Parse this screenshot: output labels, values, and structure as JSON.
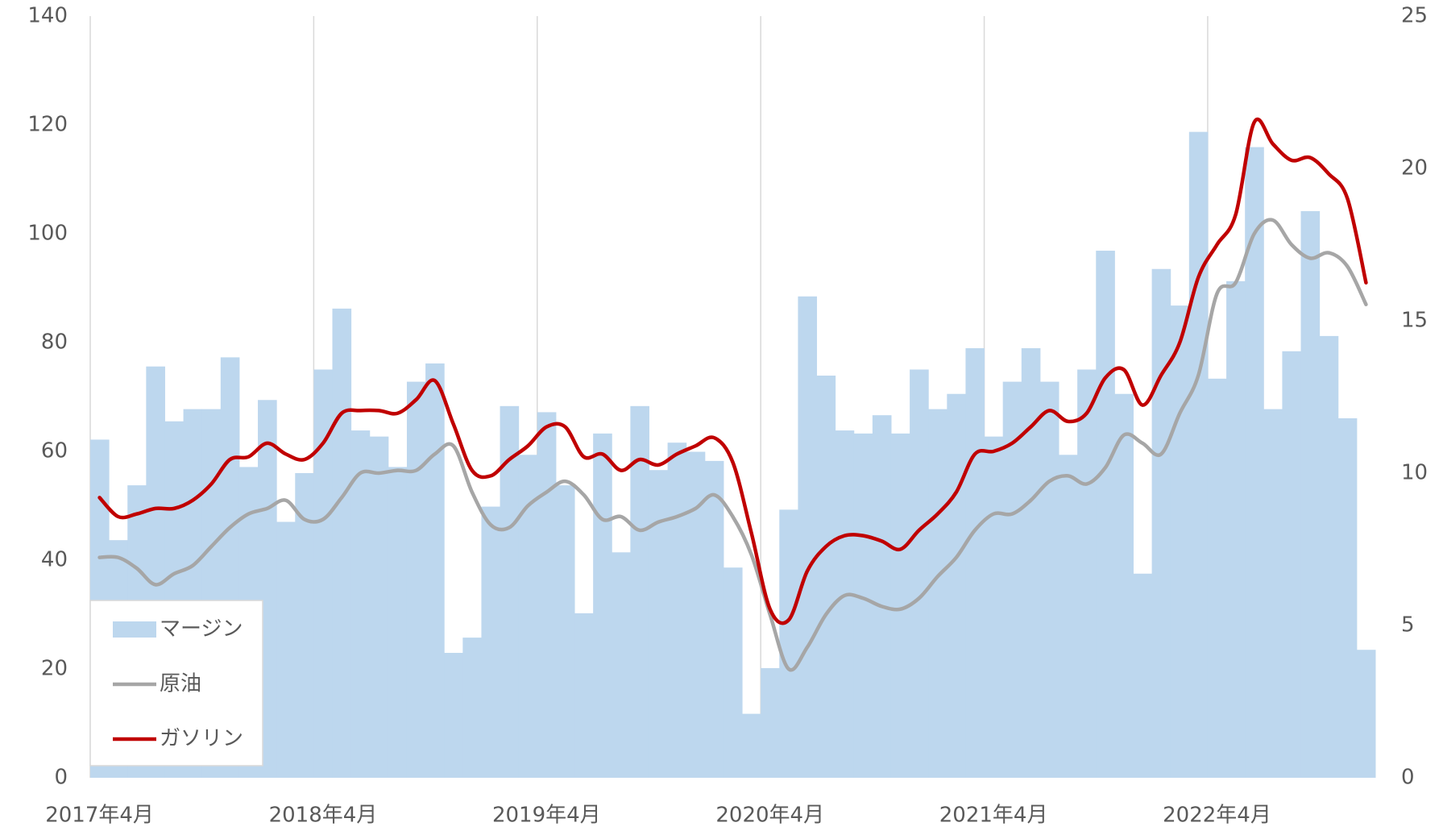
{
  "chart_data": {
    "type": "bar-line",
    "categories": [
      "2017年4月",
      null,
      null,
      null,
      null,
      null,
      null,
      null,
      null,
      null,
      null,
      null,
      "2018年4月",
      null,
      null,
      null,
      null,
      null,
      null,
      null,
      null,
      null,
      null,
      null,
      "2019年4月",
      null,
      null,
      null,
      null,
      null,
      null,
      null,
      null,
      null,
      null,
      null,
      "2020年4月",
      null,
      null,
      null,
      null,
      null,
      null,
      null,
      null,
      null,
      null,
      null,
      "2021年4月",
      null,
      null,
      null,
      null,
      null,
      null,
      null,
      null,
      null,
      null,
      null,
      "2022年4月",
      null,
      null,
      null,
      null,
      null,
      null,
      null,
      null
    ],
    "series": [
      {
        "name": "マージン",
        "type": "bar",
        "axis": "y2",
        "color": "#bdd7ee",
        "values": [
          11.1,
          7.8,
          9.6,
          13.5,
          11.7,
          12.1,
          12.1,
          13.8,
          10.2,
          12.4,
          8.4,
          10.0,
          13.4,
          15.4,
          11.4,
          11.2,
          10.2,
          13.0,
          13.6,
          4.1,
          4.6,
          8.9,
          12.2,
          10.6,
          12.0,
          9.6,
          5.4,
          11.3,
          7.4,
          12.2,
          10.1,
          11.0,
          10.7,
          10.4,
          6.9,
          2.1,
          3.6,
          8.8,
          15.8,
          13.2,
          11.4,
          11.3,
          11.9,
          11.3,
          13.4,
          12.1,
          12.6,
          14.1,
          11.2,
          13.0,
          14.1,
          13.0,
          10.6,
          13.4,
          17.3,
          12.6,
          6.7,
          16.7,
          15.5,
          21.2,
          13.1,
          16.3,
          20.7,
          12.1,
          14.0,
          18.6,
          14.5,
          11.8,
          4.2
        ]
      },
      {
        "name": "原油",
        "type": "line",
        "color": "#a6a6a6",
        "values": [
          40.5,
          40.5,
          38.5,
          35.5,
          37.5,
          39,
          42.5,
          46,
          48.5,
          49.5,
          51,
          47.5,
          47.5,
          51.5,
          56,
          56,
          56.5,
          56.5,
          59.5,
          61,
          52.5,
          46.5,
          46,
          50,
          52.5,
          54.5,
          52,
          47.5,
          48,
          45.5,
          47,
          48,
          49.5,
          52,
          48,
          41,
          30,
          20,
          24,
          30,
          33.5,
          33,
          31.5,
          31,
          33,
          37,
          40.5,
          45.5,
          48.5,
          48.5,
          51,
          54.5,
          55.5,
          54,
          57,
          63,
          61.5,
          59.5,
          67,
          74,
          89,
          91,
          100,
          102.5,
          98,
          95.5,
          96.5,
          94,
          87
        ]
      },
      {
        "name": "ガソリン",
        "type": "line",
        "color": "#c00000",
        "values": [
          51.5,
          48,
          48.5,
          49.5,
          49.5,
          51,
          54,
          58.5,
          59,
          61.5,
          59.5,
          58.5,
          61.5,
          67,
          67.5,
          67.5,
          67,
          69.5,
          73,
          65,
          56.5,
          55.5,
          58.5,
          61,
          64.5,
          64.5,
          59,
          59.5,
          56.5,
          58.5,
          57.5,
          59.5,
          61,
          62.5,
          58,
          45,
          31,
          29,
          38,
          42.5,
          44.5,
          44.5,
          43.5,
          42,
          45.5,
          48.5,
          52.5,
          59.5,
          60,
          61.5,
          64.5,
          67.5,
          65.5,
          67,
          73.5,
          75,
          68.5,
          74,
          80,
          92,
          98,
          103.5,
          120.5,
          116.5,
          113.5,
          114,
          111,
          106.5,
          91
        ]
      }
    ],
    "ylim": [
      0,
      140
    ],
    "yticks": [
      0,
      20,
      40,
      60,
      80,
      100,
      120,
      140
    ],
    "y2lim": [
      0,
      25
    ],
    "y2ticks": [
      0,
      5,
      10,
      15,
      20,
      25
    ],
    "grid": "x",
    "legend": "lower left"
  }
}
